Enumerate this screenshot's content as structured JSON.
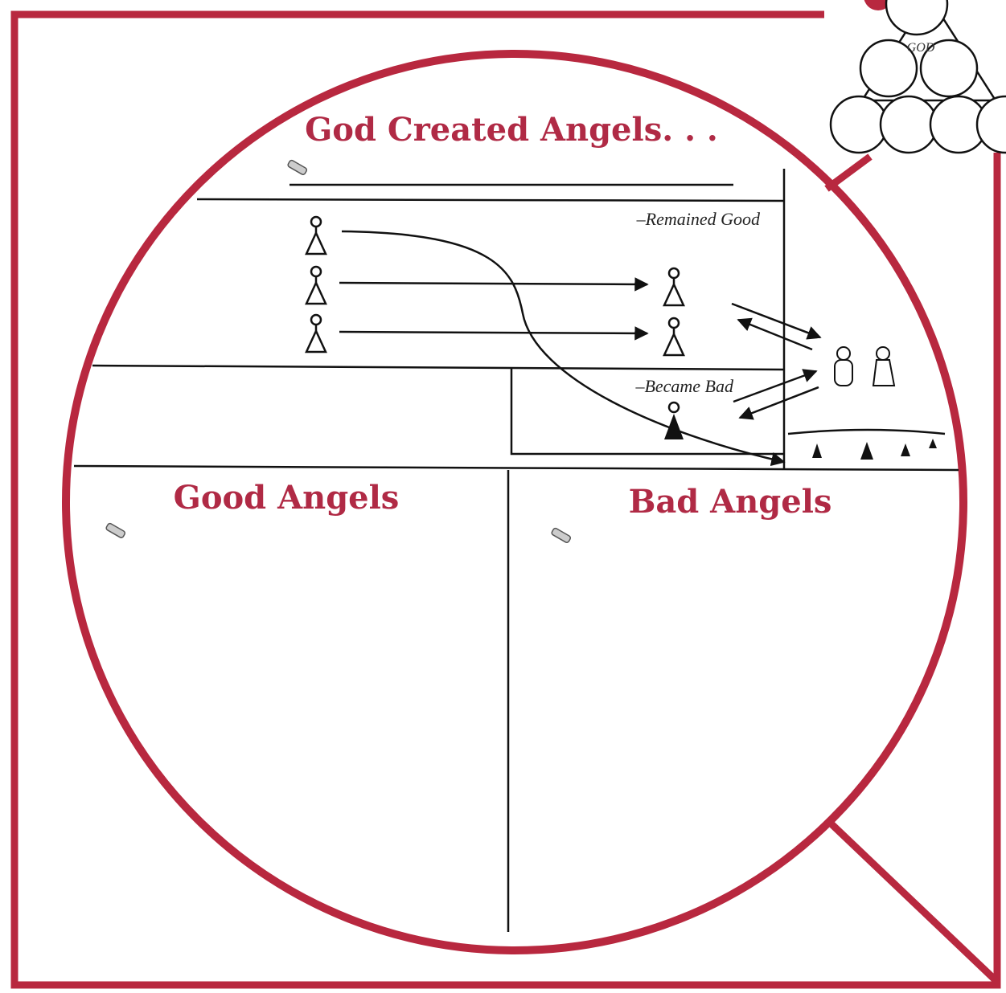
{
  "diagram": {
    "title": "God Created Angels. . .",
    "branches": [
      "–Remained Good",
      "–Became Bad"
    ],
    "columns": [
      "Good Angels",
      "Bad Angels"
    ],
    "emblem": "GOD"
  }
}
